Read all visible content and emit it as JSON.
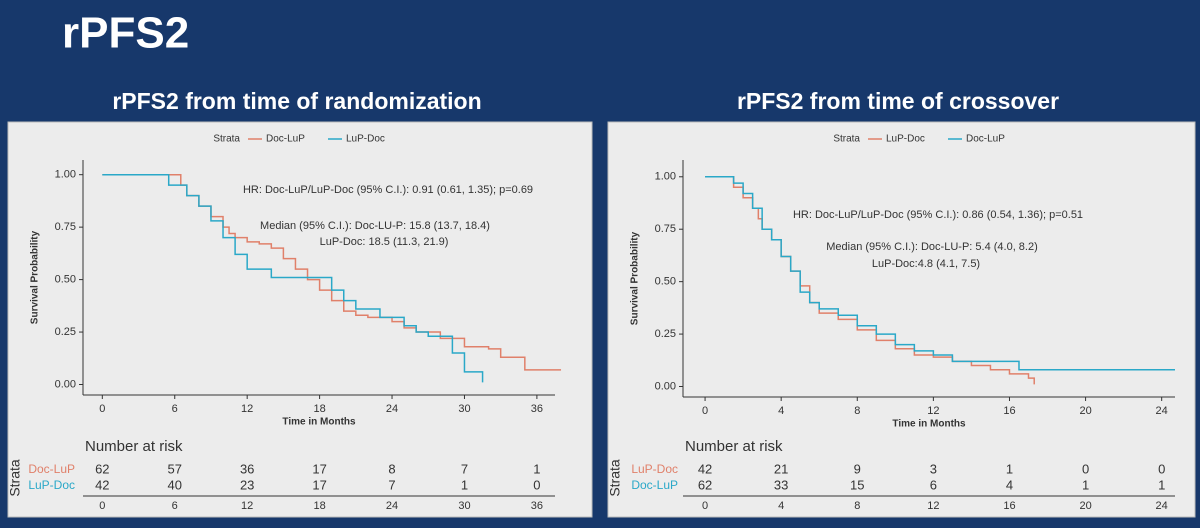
{
  "title": "rPFS2",
  "chart_data": [
    {
      "type": "line",
      "step": true,
      "title": "rPFS2 from time of randomization",
      "xlabel": "Time in Months",
      "ylabel": "Survival Probability",
      "legend_title": "Strata",
      "xlim": [
        -1.6,
        37.5
      ],
      "ylim": [
        -0.05,
        1.07
      ],
      "xticks": [
        0,
        6,
        12,
        18,
        24,
        30,
        36
      ],
      "yticks": [
        {
          "value": 0,
          "label": "0.00"
        },
        {
          "value": 0.25,
          "label": "0.25"
        },
        {
          "value": 0.5,
          "label": "0.50"
        },
        {
          "value": 0.75,
          "label": "0.75"
        },
        {
          "value": 1,
          "label": "1.00"
        }
      ],
      "series": [
        {
          "name": "Doc-LuP",
          "color": "#e0806a",
          "x": [
            0,
            6.5,
            7,
            8,
            9,
            10,
            10.5,
            11,
            12,
            13,
            14,
            15,
            16,
            17,
            18,
            19,
            20,
            21,
            22,
            24,
            25,
            26,
            28,
            30,
            32,
            33,
            35,
            38
          ],
          "values": [
            1,
            0.95,
            0.9,
            0.85,
            0.8,
            0.75,
            0.72,
            0.7,
            0.68,
            0.67,
            0.65,
            0.6,
            0.55,
            0.5,
            0.45,
            0.4,
            0.35,
            0.33,
            0.32,
            0.3,
            0.27,
            0.25,
            0.22,
            0.18,
            0.17,
            0.13,
            0.07,
            0.07
          ]
        },
        {
          "name": "LuP-Doc",
          "color": "#2aa8c8",
          "x": [
            0,
            5.5,
            7,
            8,
            9,
            10,
            11,
            12,
            14,
            18,
            19,
            20,
            21,
            23,
            25,
            26,
            27,
            29,
            30,
            31.5
          ],
          "values": [
            1,
            0.95,
            0.9,
            0.85,
            0.78,
            0.7,
            0.62,
            0.55,
            0.51,
            0.51,
            0.45,
            0.4,
            0.36,
            0.32,
            0.28,
            0.25,
            0.23,
            0.15,
            0.06,
            0.01
          ]
        }
      ],
      "annotations": [
        "HR: Doc-LuP/LuP-Doc (95% C.I.): 0.91 (0.61, 1.35); p=0.69",
        "Median (95% C.I.): Doc-LU-P: 15.8 (13.7, 18.4)",
        "LuP-Doc: 18.5 (11.3, 21.9)"
      ],
      "risk_table": {
        "title": "Number at risk",
        "label": "Strata",
        "times": [
          0,
          6,
          12,
          18,
          24,
          30,
          36
        ],
        "rows": [
          {
            "name": "Doc-LuP",
            "values": [
              62,
              57,
              36,
              17,
              8,
              7,
              1
            ]
          },
          {
            "name": "LuP-Doc",
            "values": [
              42,
              40,
              23,
              17,
              7,
              1,
              0
            ]
          }
        ]
      }
    },
    {
      "type": "line",
      "step": true,
      "title": "rPFS2 from time of crossover",
      "xlabel": "Time in Months",
      "ylabel": "Survival Probability",
      "legend_title": "Strata",
      "xlim": [
        -1.16,
        24.7
      ],
      "ylim": [
        -0.05,
        1.08
      ],
      "xticks": [
        0,
        4,
        8,
        12,
        16,
        20,
        24
      ],
      "yticks": [
        {
          "value": 0,
          "label": "0.00"
        },
        {
          "value": 0.25,
          "label": "0.25"
        },
        {
          "value": 0.5,
          "label": "0.50"
        },
        {
          "value": 0.75,
          "label": "0.75"
        },
        {
          "value": 1,
          "label": "1.00"
        }
      ],
      "series": [
        {
          "name": "LuP-Doc",
          "color": "#e0806a",
          "x": [
            0,
            1.5,
            2,
            2.5,
            2.8,
            3,
            3.5,
            4,
            4.5,
            5,
            5.5,
            6,
            7,
            8,
            9,
            10,
            11,
            12,
            13,
            14,
            15,
            16,
            17,
            17.3
          ],
          "values": [
            1,
            0.95,
            0.9,
            0.85,
            0.8,
            0.75,
            0.7,
            0.62,
            0.55,
            0.48,
            0.4,
            0.35,
            0.32,
            0.27,
            0.22,
            0.18,
            0.15,
            0.14,
            0.12,
            0.1,
            0.08,
            0.06,
            0.04,
            0.01
          ]
        },
        {
          "name": "Doc-LuP",
          "color": "#2aa8c8",
          "x": [
            0,
            1.5,
            2,
            2.5,
            3,
            3.5,
            4,
            4.5,
            5,
            5.5,
            6,
            7,
            8,
            9,
            10,
            11,
            12,
            13,
            16,
            16.5,
            24.7
          ],
          "values": [
            1,
            0.97,
            0.92,
            0.85,
            0.75,
            0.7,
            0.62,
            0.55,
            0.45,
            0.4,
            0.37,
            0.34,
            0.29,
            0.25,
            0.2,
            0.17,
            0.15,
            0.12,
            0.12,
            0.08,
            0.08
          ]
        }
      ],
      "annotations": [
        "HR: Doc-LuP/LuP-Doc (95% C.I.): 0.86 (0.54, 1.36); p=0.51",
        "Median (95% C.I.): Doc-LU-P: 5.4 (4.0, 8.2)",
        "LuP-Doc:4.8 (4.1, 7.5)"
      ],
      "risk_table": {
        "title": "Number at risk",
        "label": "Strata",
        "times": [
          0,
          4,
          8,
          12,
          16,
          20,
          24
        ],
        "rows": [
          {
            "name": "LuP-Doc",
            "values": [
              42,
              21,
              9,
              3,
              1,
              0,
              0
            ]
          },
          {
            "name": "Doc-LuP",
            "values": [
              62,
              33,
              15,
              6,
              4,
              1,
              1
            ]
          }
        ]
      }
    }
  ]
}
